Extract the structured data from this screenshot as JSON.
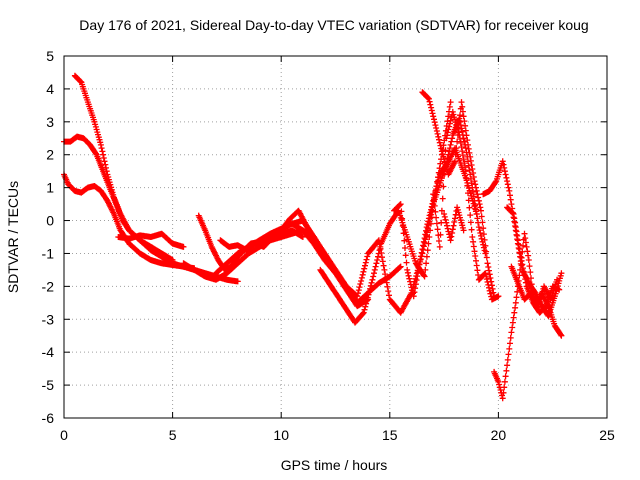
{
  "chart_data": {
    "type": "scatter",
    "title": "Day 176 of 2021, Sidereal Day-to-day VTEC variation (SDTVAR) for receiver koug",
    "xlabel": "GPS time / hours",
    "ylabel": "SDTVAR / TECUs",
    "xlim": [
      0,
      25
    ],
    "ylim": [
      -6,
      5
    ],
    "xticks": [
      0,
      5,
      10,
      15,
      20,
      25
    ],
    "yticks": [
      -6,
      -5,
      -4,
      -3,
      -2,
      -1,
      0,
      1,
      2,
      3,
      4,
      5
    ],
    "grid": true,
    "legend": "none",
    "marker": "+",
    "color": "#ff0000",
    "series": [
      {
        "x": [
          0.5,
          0.8,
          1.1,
          1.4,
          1.7,
          2.0,
          2.3,
          2.6,
          3.0,
          3.5,
          4.0,
          4.5,
          5.0,
          5.5,
          6.0,
          6.5,
          7.0,
          7.5,
          8.0
        ],
        "y": [
          4.4,
          4.2,
          3.6,
          3.0,
          2.3,
          1.4,
          0.7,
          0.2,
          -0.3,
          -0.6,
          -0.9,
          -1.1,
          -1.3,
          -1.4,
          -1.5,
          -1.6,
          -1.7,
          -1.8,
          -1.85
        ]
      },
      {
        "x": [
          0.0,
          0.3,
          0.6,
          0.9,
          1.2,
          1.5,
          1.8,
          2.1,
          2.4,
          2.7,
          3.0,
          3.5,
          4.0,
          4.5,
          5.0
        ],
        "y": [
          2.4,
          2.4,
          2.55,
          2.5,
          2.3,
          2.0,
          1.5,
          1.0,
          0.5,
          0.0,
          -0.3,
          -0.6,
          -0.8,
          -1.0,
          -1.2
        ]
      },
      {
        "x": [
          0.0,
          0.2,
          0.5,
          0.8,
          1.1,
          1.4,
          1.7,
          2.0,
          2.3,
          2.6,
          3.0,
          3.5,
          4.0,
          4.5,
          5.0,
          5.5,
          6.0
        ],
        "y": [
          1.4,
          1.1,
          0.9,
          0.85,
          1.0,
          1.05,
          0.9,
          0.6,
          0.2,
          -0.3,
          -0.7,
          -1.0,
          -1.2,
          -1.3,
          -1.35,
          -1.4,
          -1.45
        ]
      },
      {
        "x": [
          2.5,
          3.0,
          3.5,
          4.0,
          4.5,
          5.0,
          5.5
        ],
        "y": [
          -0.5,
          -0.55,
          -0.45,
          -0.5,
          -0.4,
          -0.7,
          -0.8
        ]
      },
      {
        "x": [
          5.5,
          6.0,
          6.5,
          7.0,
          7.5,
          8.0,
          8.5,
          9.0,
          9.5,
          10.0,
          10.5,
          11.0,
          11.5
        ],
        "y": [
          -1.3,
          -1.5,
          -1.7,
          -1.8,
          -1.6,
          -1.3,
          -1.0,
          -0.8,
          -0.6,
          -0.5,
          -0.4,
          -0.3,
          -0.5
        ]
      },
      {
        "x": [
          6.2,
          6.5,
          6.8,
          7.1,
          7.4,
          7.7,
          8.0,
          8.3,
          8.6,
          9.0,
          9.5,
          10.0,
          10.5,
          11.0
        ],
        "y": [
          0.15,
          -0.3,
          -0.8,
          -1.2,
          -1.5,
          -1.4,
          -1.1,
          -0.9,
          -0.7,
          -0.65,
          -0.55,
          -0.4,
          -0.3,
          -0.5
        ]
      },
      {
        "x": [
          7.0,
          7.5,
          8.0,
          8.5,
          9.0,
          9.5,
          10.0,
          10.5,
          11.0,
          11.5,
          12.0,
          12.5,
          13.0,
          13.5,
          14.0
        ],
        "y": [
          -1.6,
          -1.3,
          -1.0,
          -0.8,
          -0.6,
          -0.4,
          -0.25,
          -0.1,
          -0.3,
          -0.7,
          -1.2,
          -1.6,
          -2.1,
          -2.6,
          -2.4
        ]
      },
      {
        "x": [
          7.2,
          7.6,
          8.0,
          8.4,
          8.8,
          9.2,
          9.6,
          10.0,
          10.4,
          10.8,
          11.2,
          11.6,
          12.0,
          12.4
        ],
        "y": [
          -0.6,
          -0.8,
          -0.75,
          -0.9,
          -0.7,
          -0.8,
          -0.5,
          -0.3,
          0.05,
          0.3,
          -0.2,
          -0.6,
          -1.1,
          -1.5
        ]
      },
      {
        "x": [
          10.5,
          11.0,
          11.5,
          12.0,
          12.5,
          13.0,
          13.5,
          14.0,
          14.5,
          15.0,
          15.5
        ],
        "y": [
          -0.1,
          0.0,
          -0.5,
          -1.0,
          -1.5,
          -2.0,
          -2.5,
          -2.2,
          -1.9,
          -1.7,
          -1.4
        ]
      },
      {
        "x": [
          11.8,
          12.2,
          12.6,
          13.0,
          13.4,
          13.8,
          14.2,
          14.6,
          15.0,
          15.4,
          15.8,
          16.2,
          16.6,
          17.0,
          17.4,
          17.8
        ],
        "y": [
          -1.5,
          -1.9,
          -2.3,
          -2.7,
          -3.1,
          -2.8,
          -1.8,
          -0.7,
          -0.1,
          0.3,
          -0.5,
          -1.3,
          -1.7,
          0.5,
          2.0,
          3.6
        ]
      },
      {
        "x": [
          13.0,
          13.5,
          14.0,
          14.5,
          15.0,
          15.5,
          16.0,
          16.5,
          17.0,
          17.5,
          18.0,
          18.5,
          19.0
        ],
        "y": [
          -2.0,
          -2.3,
          -1.0,
          -0.6,
          -2.4,
          -2.8,
          -2.2,
          -1.0,
          0.5,
          1.5,
          2.2,
          1.3,
          0.2
        ]
      },
      {
        "x": [
          15.2,
          15.5,
          15.8,
          16.1,
          16.4,
          16.7,
          17.0,
          17.3,
          17.6,
          17.9,
          18.2,
          18.5,
          18.8,
          19.1,
          19.4
        ],
        "y": [
          0.3,
          0.5,
          -1.5,
          -2.3,
          -1.2,
          -0.2,
          0.6,
          1.4,
          1.7,
          2.6,
          3.1,
          2.2,
          1.0,
          -0.2,
          -1.0
        ]
      },
      {
        "x": [
          16.5,
          16.8,
          17.1,
          17.4,
          17.7,
          18.0,
          18.3,
          18.6,
          18.9,
          19.2,
          19.5,
          19.8
        ],
        "y": [
          3.9,
          3.7,
          2.9,
          2.1,
          1.4,
          1.8,
          3.6,
          2.3,
          1.2,
          0.3,
          -1.3,
          -2.3
        ]
      },
      {
        "x": [
          17.0,
          17.3,
          17.6,
          17.9,
          18.2,
          18.5,
          18.8,
          19.1,
          19.4,
          19.7,
          20.0
        ],
        "y": [
          0.8,
          -0.8,
          2.5,
          3.3,
          2.6,
          1.5,
          -0.5,
          -1.8,
          -1.6,
          -2.4,
          -2.3
        ]
      },
      {
        "x": [
          17.5,
          17.8,
          18.1,
          18.4
        ],
        "y": [
          0.2,
          -0.6,
          0.4,
          -0.3
        ]
      },
      {
        "x": [
          19.3,
          19.6,
          19.9,
          20.2,
          20.5,
          20.8,
          21.1,
          21.4,
          21.7,
          22.0,
          22.3,
          22.6,
          22.9
        ],
        "y": [
          0.8,
          0.9,
          1.2,
          1.8,
          0.9,
          -0.3,
          -1.5,
          -1.9,
          -2.2,
          -2.6,
          -2.9,
          -2.3,
          -1.6
        ]
      },
      {
        "x": [
          19.8,
          20.0,
          20.2,
          20.4,
          20.6,
          20.8,
          21.0,
          21.2,
          21.4,
          21.6,
          21.8,
          22.0,
          22.3,
          22.6,
          22.9
        ],
        "y": [
          -4.6,
          -4.9,
          -5.4,
          -4.4,
          -3.4,
          -2.5,
          -1.5,
          -0.4,
          -1.2,
          -2.3,
          -2.5,
          -2.2,
          -2.6,
          -3.2,
          -3.5
        ]
      },
      {
        "x": [
          20.4,
          20.7,
          21.0,
          21.3,
          21.6,
          21.9,
          22.2,
          22.5,
          22.8
        ],
        "y": [
          0.4,
          0.2,
          -1.0,
          -2.0,
          -2.5,
          -2.8,
          -2.6,
          -2.0,
          -2.1
        ]
      },
      {
        "x": [
          20.6,
          20.9,
          21.2,
          21.5,
          21.8,
          22.1,
          22.4,
          22.7
        ],
        "y": [
          -1.4,
          -1.9,
          -2.4,
          -2.2,
          -2.7,
          -2.0,
          -2.4,
          -1.8
        ]
      }
    ]
  }
}
